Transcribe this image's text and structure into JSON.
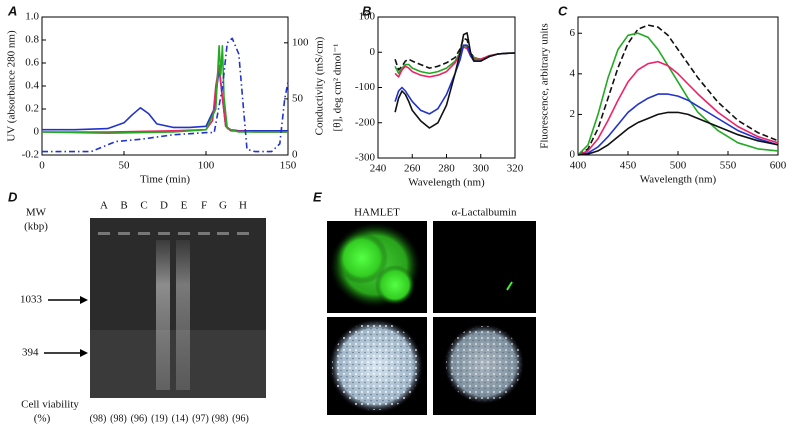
{
  "chart_data": [
    {
      "type": "line",
      "label": "A",
      "xlabel": "Time (min)",
      "ylabel": "UV (absorbance 280 nm)",
      "y2label": "Conductivity (mS/cm)",
      "xlim": [
        0,
        150
      ],
      "xticks": [
        0,
        50,
        100,
        150
      ],
      "ylim": [
        -0.2,
        1.0
      ],
      "yticks": [
        -0.2,
        0,
        0.2,
        0.4,
        0.6,
        0.8,
        {
          "value": 1,
          "label": "1.0"
        }
      ],
      "y2lim": [
        0,
        123
      ],
      "y2ticks": [
        0,
        50,
        100
      ],
      "series": [
        {
          "color": "#2233cc",
          "style": "solid",
          "x": [
            0,
            20,
            40,
            50,
            55,
            60,
            65,
            70,
            80,
            90,
            100,
            105,
            108,
            110,
            112,
            115,
            120,
            130,
            140,
            150
          ],
          "values": [
            0.02,
            0.02,
            0.03,
            0.08,
            0.15,
            0.21,
            0.16,
            0.07,
            0.04,
            0.04,
            0.05,
            0.2,
            0.55,
            0.3,
            0.05,
            0.02,
            0.01,
            0.01,
            0.01,
            0.01
          ]
        },
        {
          "color": "#ee2266",
          "style": "solid",
          "x": [
            0,
            40,
            80,
            100,
            104,
            106,
            108,
            110,
            112,
            115,
            130,
            150
          ],
          "values": [
            0,
            0,
            0.01,
            0.02,
            0.1,
            0.4,
            0.58,
            0.3,
            0.05,
            0.01,
            0,
            0
          ]
        },
        {
          "color": "#22aa22",
          "style": "solid",
          "x": [
            0,
            40,
            80,
            100,
            106,
            108,
            109,
            110,
            111,
            113,
            120,
            150
          ],
          "values": [
            0,
            -0.01,
            0,
            0.02,
            0.2,
            0.75,
            0.5,
            0.75,
            0.3,
            0.03,
            0,
            0
          ]
        },
        {
          "color": "#2233cc",
          "style": "dashdot",
          "axis": "y2",
          "x": [
            0,
            30,
            45,
            60,
            80,
            100,
            105,
            110,
            113,
            116,
            120,
            125,
            130,
            140,
            145,
            148,
            150
          ],
          "values": [
            3,
            3,
            12,
            14,
            18,
            20,
            20,
            60,
            100,
            104,
            90,
            5,
            3,
            3,
            10,
            50,
            65
          ]
        }
      ]
    },
    {
      "type": "line",
      "label": "B",
      "xlabel": "Wavelength (nm)",
      "ylabel": "[θ], deg cm² dmol⁻¹",
      "xlim": [
        240,
        320
      ],
      "xticks": [
        240,
        260,
        280,
        300,
        320
      ],
      "ylim": [
        -300,
        100
      ],
      "yticks": [
        -300,
        -200,
        -100,
        0,
        100
      ],
      "series": [
        {
          "color": "#111111",
          "style": "dashed",
          "x": [
            250,
            252,
            254,
            256,
            258,
            260,
            265,
            270,
            275,
            280,
            285,
            288,
            290,
            292,
            294,
            296,
            300,
            305,
            310,
            315,
            320
          ],
          "values": [
            -20,
            -50,
            -40,
            -25,
            -20,
            -25,
            -35,
            -45,
            -40,
            -30,
            -15,
            10,
            40,
            35,
            0,
            -15,
            -20,
            -10,
            -5,
            -3,
            -2
          ]
        },
        {
          "color": "#22aa22",
          "style": "solid",
          "x": [
            250,
            252,
            254,
            256,
            258,
            260,
            265,
            270,
            275,
            280,
            285,
            288,
            290,
            292,
            294,
            296,
            300,
            305,
            310,
            315,
            320
          ],
          "values": [
            -40,
            -60,
            -45,
            -35,
            -35,
            -45,
            -55,
            -60,
            -55,
            -45,
            -25,
            0,
            20,
            15,
            -5,
            -15,
            -20,
            -10,
            -5,
            -3,
            -2
          ]
        },
        {
          "color": "#ee2266",
          "style": "solid",
          "x": [
            250,
            252,
            254,
            256,
            258,
            260,
            265,
            270,
            275,
            280,
            285,
            288,
            290,
            292,
            294,
            296,
            300,
            305,
            310,
            315,
            320
          ],
          "values": [
            -60,
            -70,
            -50,
            -40,
            -45,
            -55,
            -65,
            -70,
            -65,
            -55,
            -30,
            -5,
            15,
            10,
            -10,
            -20,
            -20,
            -10,
            -5,
            -3,
            -2
          ]
        },
        {
          "color": "#2233cc",
          "style": "solid",
          "x": [
            250,
            252,
            254,
            256,
            258,
            260,
            265,
            270,
            275,
            280,
            285,
            288,
            290,
            292,
            294,
            296,
            300,
            305,
            310,
            315,
            320
          ],
          "values": [
            -140,
            -110,
            -100,
            -110,
            -125,
            -140,
            -165,
            -175,
            -160,
            -120,
            -60,
            -20,
            20,
            20,
            -10,
            -25,
            -25,
            -12,
            -5,
            -3,
            -2
          ]
        },
        {
          "color": "#111111",
          "style": "solid",
          "x": [
            250,
            252,
            254,
            256,
            258,
            260,
            265,
            270,
            275,
            280,
            285,
            288,
            290,
            292,
            294,
            296,
            300,
            305,
            310,
            315,
            320
          ],
          "values": [
            -170,
            -130,
            -110,
            -120,
            -140,
            -165,
            -195,
            -215,
            -200,
            -150,
            -60,
            0,
            50,
            55,
            0,
            -25,
            -25,
            -12,
            -5,
            -3,
            -2
          ]
        }
      ]
    },
    {
      "type": "line",
      "label": "C",
      "xlabel": "Wavelength (nm)",
      "ylabel": "Fluorescence, arbitrary units",
      "xlim": [
        400,
        600
      ],
      "xticks": [
        400,
        450,
        500,
        550,
        600
      ],
      "ylim": [
        0,
        6.8
      ],
      "yticks": [
        0,
        2,
        4,
        6
      ],
      "series": [
        {
          "color": "#111111",
          "style": "dashed",
          "x": [
            400,
            410,
            420,
            430,
            440,
            450,
            460,
            470,
            480,
            490,
            500,
            510,
            520,
            540,
            560,
            580,
            600
          ],
          "values": [
            0,
            0.3,
            1.3,
            2.8,
            4.3,
            5.5,
            6.2,
            6.4,
            6.3,
            5.9,
            5.2,
            4.5,
            3.8,
            2.6,
            1.7,
            1.1,
            0.7
          ]
        },
        {
          "color": "#22aa22",
          "style": "solid",
          "x": [
            400,
            410,
            420,
            430,
            440,
            450,
            460,
            470,
            480,
            490,
            500,
            510,
            520,
            540,
            560,
            580,
            600
          ],
          "values": [
            0,
            0.5,
            2,
            3.8,
            5.2,
            5.9,
            6.0,
            5.8,
            5.2,
            4.4,
            3.6,
            2.8,
            2.1,
            1.2,
            0.6,
            0.3,
            0.2
          ]
        },
        {
          "color": "#ee2266",
          "style": "solid",
          "x": [
            400,
            410,
            420,
            430,
            440,
            450,
            460,
            470,
            480,
            490,
            500,
            510,
            520,
            540,
            560,
            580,
            600
          ],
          "values": [
            0,
            0.2,
            0.8,
            1.7,
            2.7,
            3.6,
            4.2,
            4.5,
            4.6,
            4.4,
            4.0,
            3.5,
            3.0,
            2.1,
            1.4,
            0.9,
            0.6
          ]
        },
        {
          "color": "#2233cc",
          "style": "solid",
          "x": [
            400,
            410,
            420,
            430,
            440,
            450,
            460,
            470,
            480,
            490,
            500,
            510,
            520,
            540,
            560,
            580,
            600
          ],
          "values": [
            0,
            0.1,
            0.4,
            0.9,
            1.5,
            2.1,
            2.5,
            2.8,
            3.0,
            3.0,
            2.9,
            2.7,
            2.4,
            1.8,
            1.2,
            0.8,
            0.5
          ]
        },
        {
          "color": "#111111",
          "style": "solid",
          "x": [
            400,
            410,
            420,
            430,
            440,
            450,
            460,
            470,
            480,
            490,
            500,
            510,
            520,
            540,
            560,
            580,
            600
          ],
          "values": [
            0,
            0.05,
            0.2,
            0.5,
            0.9,
            1.3,
            1.6,
            1.8,
            2.0,
            2.1,
            2.1,
            2.0,
            1.8,
            1.4,
            1.0,
            0.7,
            0.5
          ]
        }
      ]
    }
  ],
  "panel_d": {
    "label": "D",
    "mw_label": "MW",
    "mw_unit": "(kbp)",
    "lanes": [
      "A",
      "B",
      "C",
      "D",
      "E",
      "F",
      "G",
      "H"
    ],
    "markers": [
      "1033",
      "394"
    ],
    "viability_label": "Cell viability",
    "viability_unit": "(%)",
    "viability": [
      "(98)",
      "(98)",
      "(96)",
      "(19)",
      "(14)",
      "(97)",
      "(98)",
      "(96)"
    ]
  },
  "panel_e": {
    "label": "E",
    "columns": [
      "HAMLET",
      "α-Lactalbumin"
    ]
  }
}
